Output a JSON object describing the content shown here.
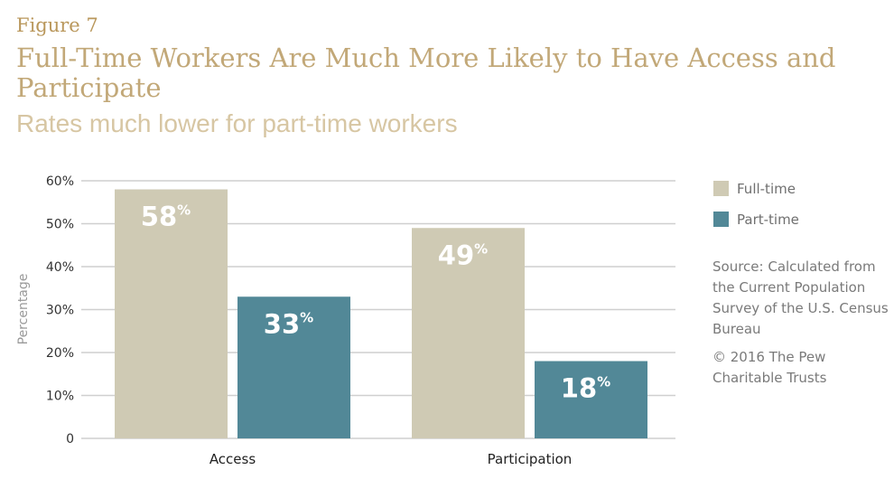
{
  "figure_label": "Figure 7",
  "title": "Full-Time Workers Are Much More Likely to Have Access and Participate",
  "subtitle": "Rates much lower for part-time workers",
  "source": "Source: Calculated from the Current Population Survey of the U.S. Census Bureau",
  "copyright": "© 2016 The Pew Charitable Trusts",
  "chart_data": {
    "type": "bar",
    "categories": [
      "Access",
      "Participation"
    ],
    "series": [
      {
        "name": "Full-time",
        "values": [
          58,
          49
        ],
        "color": "#cfcab4",
        "labels": [
          "58%",
          "49%"
        ]
      },
      {
        "name": "Part-time",
        "values": [
          33,
          18
        ],
        "color": "#528897",
        "labels": [
          "33%",
          "18%"
        ]
      }
    ],
    "ylabel": "Percentage",
    "ylim": [
      0,
      60
    ],
    "yticks": [
      0,
      10,
      20,
      30,
      40,
      50,
      60
    ],
    "ytick_labels": [
      "0",
      "10%",
      "20%",
      "30%",
      "40%",
      "50%",
      "60%"
    ],
    "grid": true,
    "legend_position": "right"
  }
}
